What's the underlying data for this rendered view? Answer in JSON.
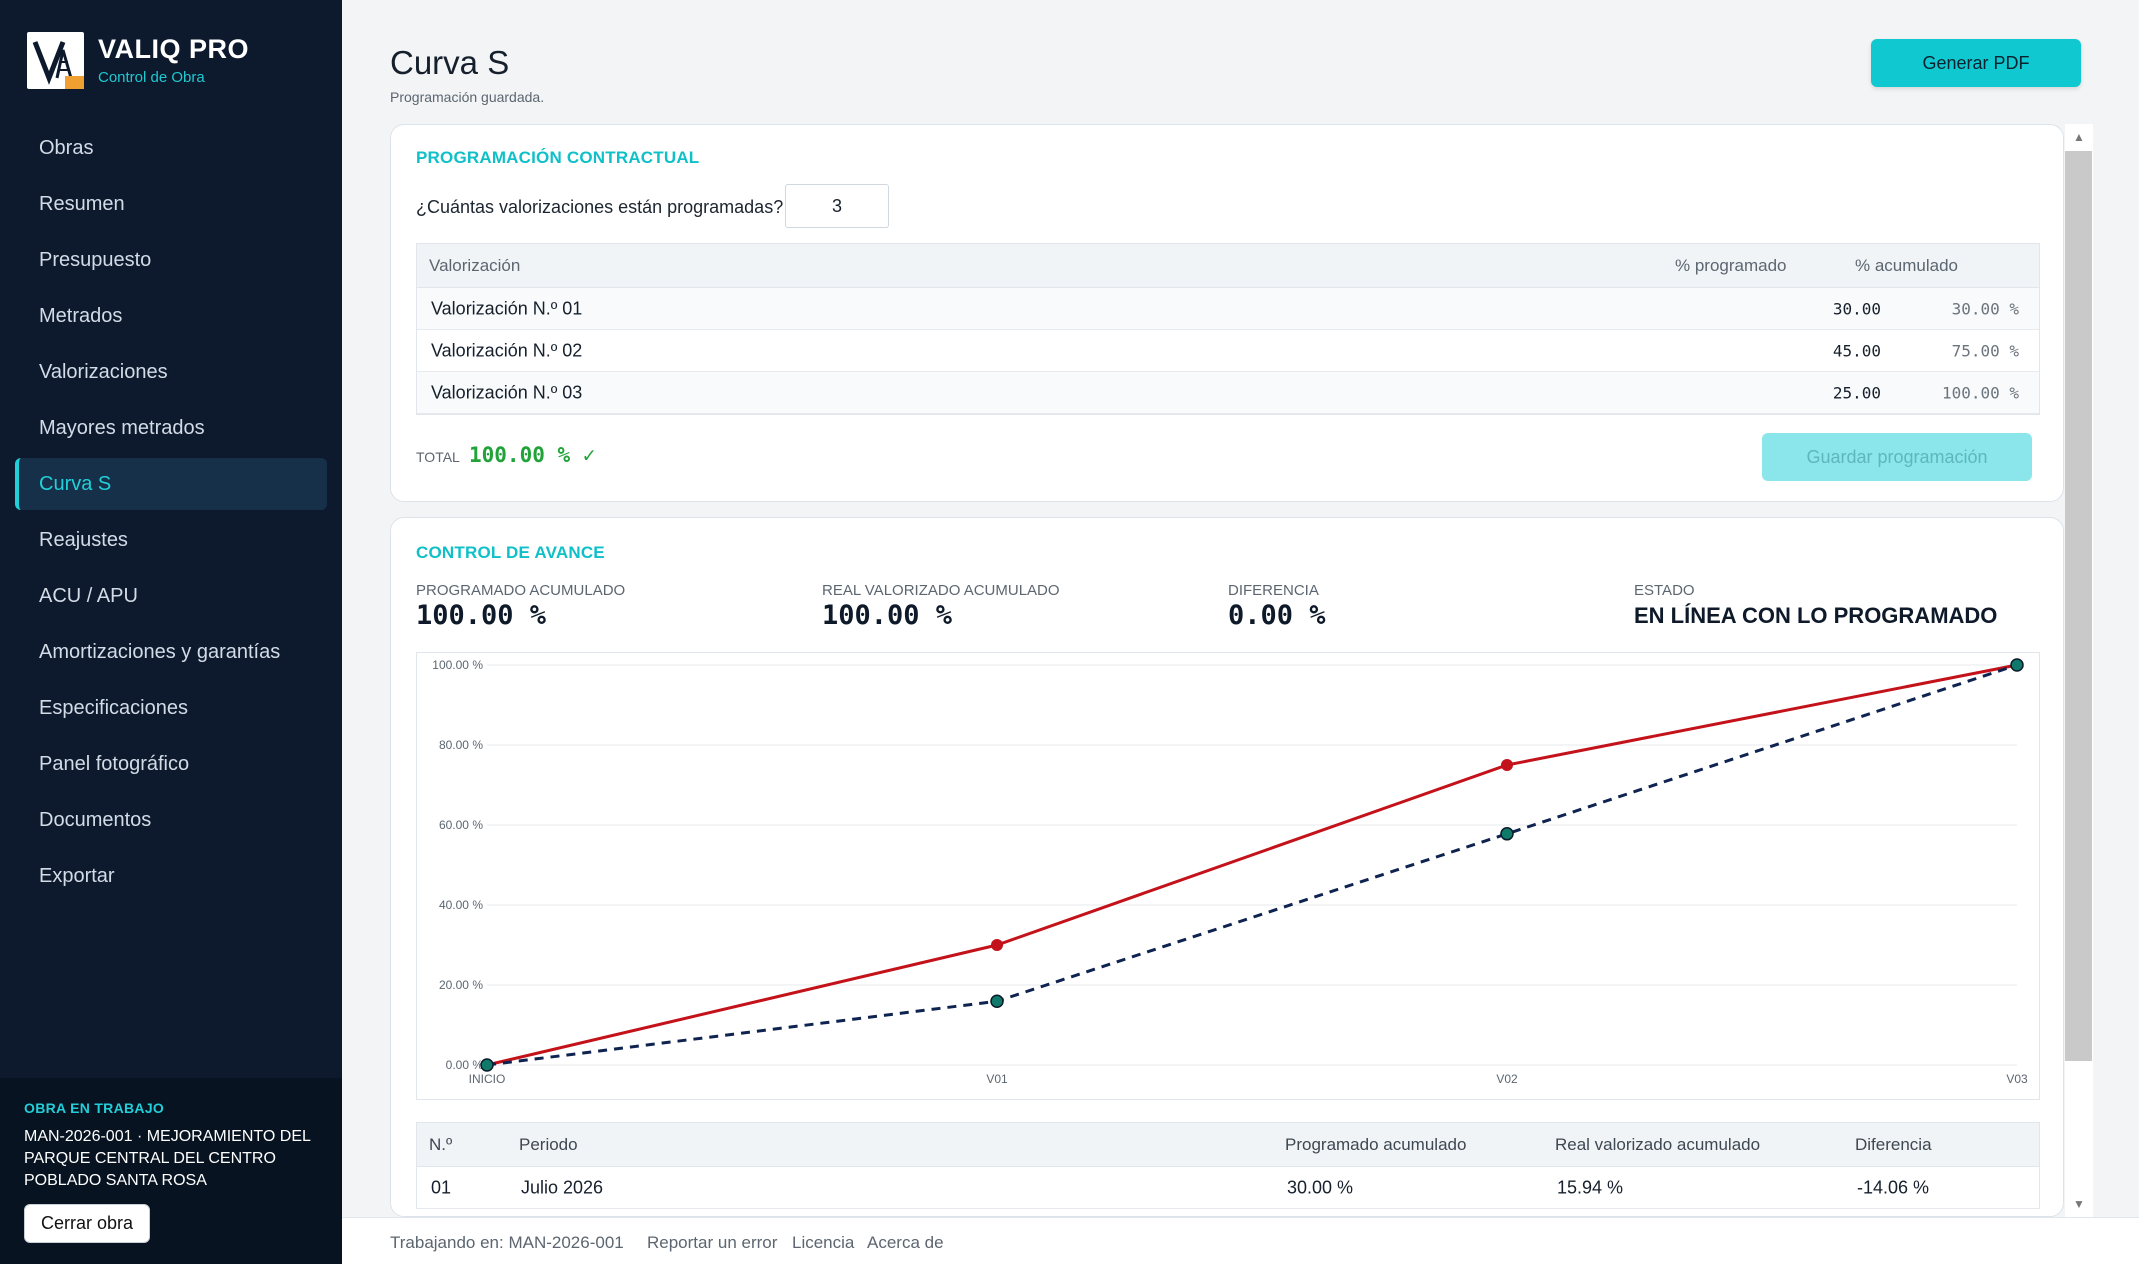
{
  "app": {
    "title": "VALIQ PRO",
    "subtitle": "Control de Obra"
  },
  "sidebar": {
    "items": [
      {
        "label": "Obras"
      },
      {
        "label": "Resumen"
      },
      {
        "label": "Presupuesto"
      },
      {
        "label": "Metrados"
      },
      {
        "label": "Valorizaciones"
      },
      {
        "label": "Mayores metrados"
      },
      {
        "label": "Curva S",
        "active": true
      },
      {
        "label": "Reajustes"
      },
      {
        "label": "ACU / APU"
      },
      {
        "label": "Amortizaciones y garantías"
      },
      {
        "label": "Especificaciones"
      },
      {
        "label": "Panel fotográfico"
      },
      {
        "label": "Documentos"
      },
      {
        "label": "Exportar"
      }
    ],
    "work": {
      "label": "OBRA EN TRABAJO",
      "name": "MAN-2026-001 · MEJORAMIENTO DEL PARQUE CENTRAL DEL CENTRO POBLADO SANTA ROSA",
      "close_label": "Cerrar obra"
    }
  },
  "header": {
    "title": "Curva S",
    "status": "Programación guardada.",
    "pdf_label": "Generar PDF"
  },
  "programacion": {
    "title": "PROGRAMACIÓN CONTRACTUAL",
    "question": "¿Cuántas valorizaciones están programadas?",
    "count": "3",
    "columns": {
      "name": "Valorización",
      "programmed": "% programado",
      "cumulative": "% acumulado"
    },
    "rows": [
      {
        "name": "Valorización N.º 01",
        "programmed": "30.00",
        "cumulative": "30.00 %"
      },
      {
        "name": "Valorización N.º 02",
        "programmed": "45.00",
        "cumulative": "75.00 %"
      },
      {
        "name": "Valorización N.º 03",
        "programmed": "25.00",
        "cumulative": "100.00 %"
      }
    ],
    "total_label": "TOTAL",
    "total_value": "100.00 % ✓",
    "save_label": "Guardar programación"
  },
  "control": {
    "title": "CONTROL DE AVANCE",
    "stats": [
      {
        "label": "PROGRAMADO ACUMULADO",
        "value": "100.00 %"
      },
      {
        "label": "REAL VALORIZADO ACUMULADO",
        "value": "100.00 %"
      },
      {
        "label": "DIFERENCIA",
        "value": "0.00 %"
      },
      {
        "label": "ESTADO",
        "value": "EN LÍNEA CON LO PROGRAMADO"
      }
    ],
    "table": {
      "columns": {
        "n": "N.º",
        "period": "Periodo",
        "programmed": "Programado acumulado",
        "real": "Real valorizado acumulado",
        "diff": "Diferencia"
      },
      "rows": [
        {
          "n": "01",
          "period": "Julio 2026",
          "programmed": "30.00 %",
          "real": "15.94 %",
          "diff": "-14.06 %"
        }
      ]
    }
  },
  "chart_data": {
    "type": "line",
    "categories": [
      "INICIO",
      "V01",
      "V02",
      "V03"
    ],
    "y_ticks": [
      "0.00 %",
      "20.00 %",
      "40.00 %",
      "60.00 %",
      "80.00 %",
      "100.00 %"
    ],
    "ylim": [
      0,
      100
    ],
    "grid": true,
    "series": [
      {
        "values": [
          0,
          30,
          75,
          100
        ],
        "color": "#c4121a",
        "style": "solid"
      },
      {
        "values": [
          0,
          15.94,
          57.8,
          100
        ],
        "color": "#0f2350",
        "style": "dashed",
        "marker_color": "#0f7a6a"
      }
    ]
  },
  "footer": {
    "working": "Trabajando en: MAN-2026-001",
    "report": "Reportar un error",
    "license": "Licencia",
    "about": "Acerca de"
  }
}
